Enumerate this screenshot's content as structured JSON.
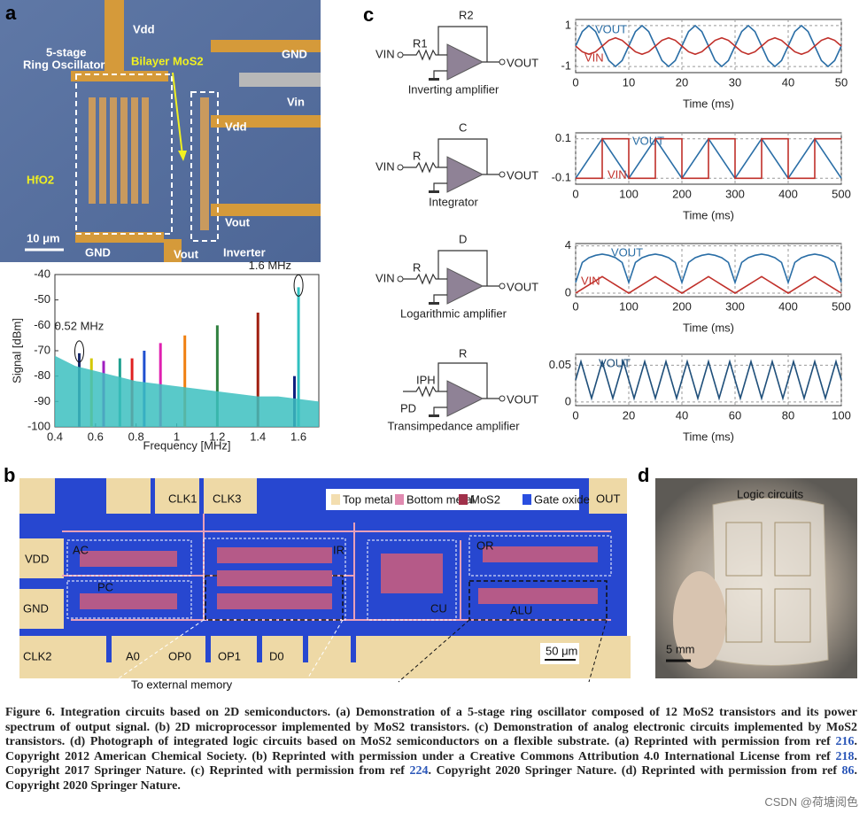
{
  "panel_labels": [
    "a",
    "b",
    "c",
    "d"
  ],
  "photo_a": {
    "labels": [
      "Vdd",
      "5-stage",
      "Ring Oscillator",
      "Bilayer MoS2",
      "GND",
      "Vin",
      "HfO2",
      "Vdd",
      "Vout",
      "10 μm",
      "GND",
      "Vout",
      "Inverter"
    ]
  },
  "chart_data": [
    {
      "type": "stem",
      "x": [
        0.52,
        0.58,
        0.64,
        0.72,
        0.78,
        0.84,
        0.92,
        1.04,
        1.2,
        1.4,
        1.58,
        1.6
      ],
      "values": [
        -71,
        -73,
        -74,
        -73,
        -73,
        -70,
        -67,
        -64,
        -60,
        -55,
        -80,
        -45
      ],
      "colors": [
        "#1a2a6c",
        "#d4c800",
        "#a020c0",
        "#20a090",
        "#e02020",
        "#2050d0",
        "#e020b0",
        "#f08010",
        "#308040",
        "#a02010",
        "#102080",
        "#30c0c0"
      ],
      "noise_floor": {
        "x": [
          0.4,
          0.5,
          0.6,
          0.7,
          0.8,
          0.9,
          1.0,
          1.1,
          1.2,
          1.3,
          1.4,
          1.5,
          1.6,
          1.7
        ],
        "values": [
          -72,
          -76,
          -78,
          -80,
          -82,
          -83,
          -84,
          -85,
          -86,
          -87,
          -88,
          -88,
          -89,
          -90
        ],
        "color": "#3cc0c0"
      },
      "annotations": [
        "0.52 MHz",
        "1.6 MHz"
      ],
      "xlim": [
        0.4,
        1.7
      ],
      "ylim": [
        -100,
        -40
      ],
      "xticks": [
        0.4,
        0.6,
        0.8,
        1,
        1.2,
        1.4,
        1.6
      ],
      "yticks": [
        -100,
        -90,
        -80,
        -70,
        -60,
        -50,
        -40
      ],
      "xlabel": "Frequency [MHz]",
      "ylabel": "Signal [dBm]",
      "grid": false
    },
    {
      "type": "line",
      "x": [
        0,
        1.25,
        2.5,
        3.75,
        5,
        6.25,
        7.5,
        8.75,
        10,
        11.25,
        12.5,
        13.75,
        15,
        16.25,
        17.5,
        18.75,
        20,
        21.25,
        22.5,
        23.75,
        25,
        26.25,
        27.5,
        28.75,
        30,
        31.25,
        32.5,
        33.75,
        35,
        36.25,
        37.5,
        38.75,
        40,
        41.25,
        42.5,
        43.75,
        45,
        46.25,
        47.5,
        48.75,
        50
      ],
      "series": [
        {
          "name": "VOUT",
          "color": "#2a6ea6",
          "values": [
            0,
            0.71,
            1,
            0.71,
            0,
            -0.71,
            -1,
            -0.71,
            0,
            0.71,
            1,
            0.71,
            0,
            -0.71,
            -1,
            -0.71,
            0,
            0.71,
            1,
            0.71,
            0,
            -0.71,
            -1,
            -0.71,
            0,
            0.71,
            1,
            0.71,
            0,
            -0.71,
            -1,
            -0.71,
            0,
            0.71,
            1,
            0.71,
            0,
            -0.71,
            -1,
            -0.71,
            0
          ]
        },
        {
          "name": "VIN",
          "color": "#c0302a",
          "values": [
            0,
            -0.28,
            -0.4,
            -0.28,
            0,
            0.28,
            0.4,
            0.28,
            0,
            -0.28,
            -0.4,
            -0.28,
            0,
            0.28,
            0.4,
            0.28,
            0,
            -0.28,
            -0.4,
            -0.28,
            0,
            0.28,
            0.4,
            0.28,
            0,
            -0.28,
            -0.4,
            -0.28,
            0,
            0.28,
            0.4,
            0.28,
            0,
            -0.28,
            -0.4,
            -0.28,
            0,
            0.28,
            0.4,
            0.28,
            0
          ]
        }
      ],
      "xlim": [
        0,
        50
      ],
      "ylim": [
        -1.3,
        1.3
      ],
      "xticks": [
        0,
        10,
        20,
        30,
        40,
        50
      ],
      "yticks": [
        -1,
        1
      ],
      "xlabel": "Time (ms)",
      "grid": true
    },
    {
      "type": "line",
      "x": [
        0,
        50,
        50,
        100,
        100,
        150,
        150,
        200,
        200,
        250,
        250,
        300,
        300,
        350,
        350,
        400,
        400,
        450,
        450,
        500
      ],
      "series": [
        {
          "name": "VOUT",
          "color": "#2a6ea6",
          "values": [
            -0.1,
            0.1,
            0.1,
            -0.1,
            -0.1,
            0.1,
            0.1,
            -0.1,
            -0.1,
            0.1,
            0.1,
            -0.1,
            -0.1,
            0.1,
            0.1,
            -0.1,
            -0.1,
            0.1,
            0.1,
            -0.1
          ]
        },
        {
          "name": "VIN",
          "color": "#c0302a",
          "values": [
            -0.1,
            -0.1,
            0.1,
            0.1,
            -0.1,
            -0.1,
            0.1,
            0.1,
            -0.1,
            -0.1,
            0.1,
            0.1,
            -0.1,
            -0.1,
            0.1,
            0.1,
            -0.1,
            -0.1,
            0.1,
            0.1
          ]
        }
      ],
      "xlim": [
        0,
        500
      ],
      "ylim": [
        -0.13,
        0.13
      ],
      "xticks": [
        0,
        100,
        200,
        300,
        400,
        500
      ],
      "yticks": [
        -0.1,
        0.1
      ],
      "xlabel": "Time (ms)",
      "grid": true
    },
    {
      "type": "line",
      "x": [
        0,
        12.5,
        25,
        37.5,
        50,
        62.5,
        75,
        87.5,
        100,
        112.5,
        125,
        137.5,
        150,
        162.5,
        175,
        187.5,
        200,
        212.5,
        225,
        237.5,
        250,
        262.5,
        275,
        287.5,
        300,
        312.5,
        325,
        337.5,
        350,
        362.5,
        375,
        387.5,
        400,
        412.5,
        425,
        437.5,
        450,
        462.5,
        475,
        487.5,
        500
      ],
      "series": [
        {
          "name": "VOUT",
          "color": "#2a6ea6",
          "values": [
            0.9,
            2.6,
            3,
            3.2,
            3.3,
            3.2,
            3,
            2.6,
            0.9,
            2.6,
            3,
            3.2,
            3.3,
            3.2,
            3,
            2.6,
            0.9,
            2.6,
            3,
            3.2,
            3.3,
            3.2,
            3,
            2.6,
            0.9,
            2.6,
            3,
            3.2,
            3.3,
            3.2,
            3,
            2.6,
            0.9,
            2.6,
            3,
            3.2,
            3.3,
            3.2,
            3,
            2.6,
            0.9
          ]
        },
        {
          "name": "VIN",
          "color": "#c0302a",
          "values": [
            0,
            0.35,
            0.7,
            1.05,
            1.4,
            1.05,
            0.7,
            0.35,
            0,
            0.35,
            0.7,
            1.05,
            1.4,
            1.05,
            0.7,
            0.35,
            0,
            0.35,
            0.7,
            1.05,
            1.4,
            1.05,
            0.7,
            0.35,
            0,
            0.35,
            0.7,
            1.05,
            1.4,
            1.05,
            0.7,
            0.35,
            0,
            0.35,
            0.7,
            1.05,
            1.4,
            1.05,
            0.7,
            0.35,
            0
          ]
        }
      ],
      "xlim": [
        0,
        500
      ],
      "ylim": [
        -0.3,
        4.2
      ],
      "xticks": [
        0,
        100,
        200,
        300,
        400,
        500
      ],
      "yticks": [
        0,
        4
      ],
      "xlabel": "Time (ms)",
      "grid": true
    },
    {
      "type": "line",
      "x": [
        0,
        2,
        4,
        6,
        8,
        10,
        12,
        14,
        16,
        18,
        20,
        22,
        24,
        26,
        28,
        30,
        32,
        34,
        36,
        38,
        40,
        42,
        44,
        46,
        48,
        50,
        52,
        54,
        56,
        58,
        60,
        62,
        64,
        66,
        68,
        70,
        72,
        74,
        76,
        78,
        80,
        82,
        84,
        86,
        88,
        90,
        92,
        94,
        96,
        98,
        100
      ],
      "series": [
        {
          "name": "VOUT",
          "color": "#1f4f7a",
          "values": [
            0.03,
            0.055,
            0.03,
            0.005,
            0.03,
            0.055,
            0.03,
            0.005,
            0.03,
            0.055,
            0.03,
            0.005,
            0.03,
            0.055,
            0.03,
            0.005,
            0.03,
            0.055,
            0.03,
            0.005,
            0.03,
            0.055,
            0.03,
            0.005,
            0.03,
            0.055,
            0.03,
            0.005,
            0.03,
            0.055,
            0.03,
            0.005,
            0.03,
            0.055,
            0.03,
            0.005,
            0.03,
            0.055,
            0.03,
            0.005,
            0.03,
            0.055,
            0.03,
            0.005,
            0.03,
            0.055,
            0.03,
            0.005,
            0.03,
            0.055,
            0.03
          ]
        }
      ],
      "xlim": [
        0,
        100
      ],
      "ylim": [
        -0.005,
        0.065
      ],
      "xticks": [
        0,
        20,
        40,
        60,
        80,
        100
      ],
      "yticks": [
        0,
        0.05
      ],
      "xlabel": "Time (ms)",
      "grid": true
    }
  ],
  "circuits": [
    {
      "title": "Inverting amplifier",
      "labels": [
        "VIN",
        "R1",
        "R2",
        "VOUT"
      ]
    },
    {
      "title": "Integrator",
      "labels": [
        "VIN",
        "R",
        "C",
        "VOUT"
      ]
    },
    {
      "title": "Logarithmic amplifier",
      "labels": [
        "VIN",
        "R",
        "D",
        "VOUT"
      ]
    },
    {
      "title": "Transimpedance amplifier",
      "labels": [
        "IPH",
        "R",
        "PD",
        "VOUT"
      ]
    }
  ],
  "photo_b": {
    "labels": [
      "CLK1",
      "CLK3",
      "OUT",
      "VDD",
      "GND",
      "CLK2",
      "A0",
      "OP0",
      "OP1",
      "D0",
      "AC",
      "PC",
      "IR",
      "CU",
      "OR",
      "ALU"
    ],
    "legend": [
      "Top metal",
      "Bottom metal",
      "MoS2",
      "Gate oxide"
    ],
    "scale_bar": "50 μm",
    "annotation": "To external memory"
  },
  "photo_d": {
    "labels": [
      "Logic circuits",
      "5 mm"
    ]
  },
  "caption": {
    "parts": [
      "Figure 6. Integration circuits based on 2D semiconductors. (a) Demonstration of a 5-stage ring oscillator composed of 12 MoS2 transistors and its power spectrum of output signal. (b) 2D microprocessor implemented by MoS2 transistors. (c) Demonstration of analog electronic circuits implemented by MoS2 transistors. (d) Photograph of integrated logic circuits based on MoS2 semiconductors on a flexible substrate. (a) Reprinted with permission from ref ",
      "216",
      ". Copyright 2012 American Chemical Society. (b) Reprinted with permission under a Creative Commons Attribution 4.0 International License from ref ",
      "218",
      ". Copyright 2017 Springer Nature. (c) Reprinted with permission from ref ",
      "224",
      ". Copyright 2020 Springer Nature. (d) Reprinted with permission from ref ",
      "86",
      ". Copyright 2020 Springer Nature."
    ]
  },
  "watermark": "CSDN @荷塘阅色"
}
